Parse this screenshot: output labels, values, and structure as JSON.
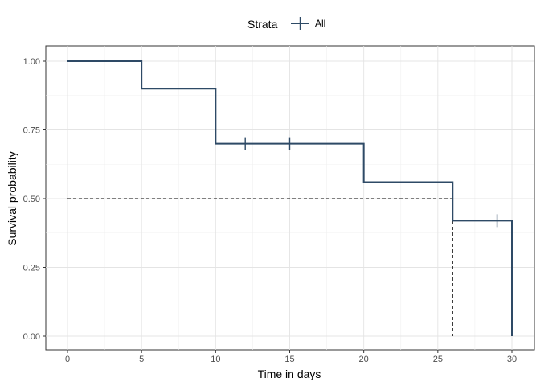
{
  "chart_data": {
    "type": "line",
    "subtype": "kaplan-meier-step",
    "title": "",
    "xlabel": "Time in days",
    "ylabel": "Survival probability",
    "xlim": [
      0,
      30
    ],
    "ylim": [
      0,
      1
    ],
    "x_ticks": [
      0,
      5,
      10,
      15,
      20,
      25,
      30
    ],
    "x_tick_labels": [
      "0",
      "5",
      "10",
      "15",
      "20",
      "25",
      "30"
    ],
    "y_ticks": [
      0,
      0.25,
      0.5,
      0.75,
      1
    ],
    "y_tick_labels": [
      "0.00",
      "0.25",
      "0.50",
      "0.75",
      "1.00"
    ],
    "grid": true,
    "legend": {
      "title": "Strata",
      "position": "top",
      "entries": [
        "All"
      ]
    },
    "series": [
      {
        "name": "All",
        "color": "#2e4a66",
        "steps": [
          {
            "x": 0,
            "y": 1.0
          },
          {
            "x": 5,
            "y": 0.9
          },
          {
            "x": 10,
            "y": 0.7
          },
          {
            "x": 20,
            "y": 0.56
          },
          {
            "x": 26,
            "y": 0.42
          },
          {
            "x": 30,
            "y": 0.0
          }
        ],
        "censor_points": [
          {
            "x": 12,
            "y": 0.7
          },
          {
            "x": 15,
            "y": 0.7
          },
          {
            "x": 29,
            "y": 0.42
          }
        ]
      }
    ],
    "median_line": {
      "survival": 0.5,
      "time": 26,
      "style": "dashed"
    }
  }
}
